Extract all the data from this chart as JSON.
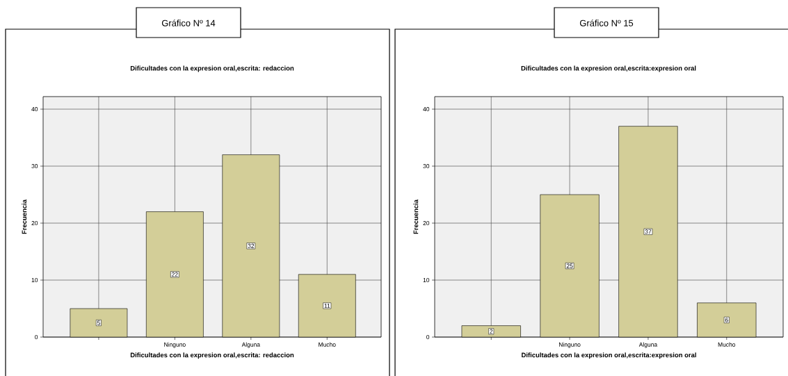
{
  "chart_data": [
    {
      "type": "bar",
      "title": "Gráfico Nº 14",
      "subtitle": "Dificultades con la expresion oral,escrita: redaccion",
      "xlabel": "Dificultades con la expresion oral,escrita: redaccion",
      "ylabel": "Frecuencia",
      "categories": [
        null,
        "Ninguno",
        "Alguna",
        "Mucho"
      ],
      "values": [
        5,
        22,
        32,
        11
      ],
      "color": "#d3ce98",
      "ylim": [
        0,
        42.2
      ],
      "yticks": [
        0,
        10,
        20,
        30,
        40
      ],
      "grid": true,
      "data_labels": true
    },
    {
      "type": "bar",
      "title": "Gráfico Nº 15",
      "subtitle": "Dificultades con la expresion oral,escrita:expresion oral",
      "xlabel": "Dificultades con la expresion oral,escrita:expresion oral",
      "ylabel": "Frecuencia",
      "categories": [
        null,
        "Ninguno",
        "Alguna",
        "Mucho"
      ],
      "values": [
        2,
        25,
        37,
        6
      ],
      "color": "#d3ce98",
      "ylim": [
        0,
        42.2
      ],
      "yticks": [
        0,
        10,
        20,
        30,
        40
      ],
      "grid": true,
      "data_labels": true
    }
  ]
}
